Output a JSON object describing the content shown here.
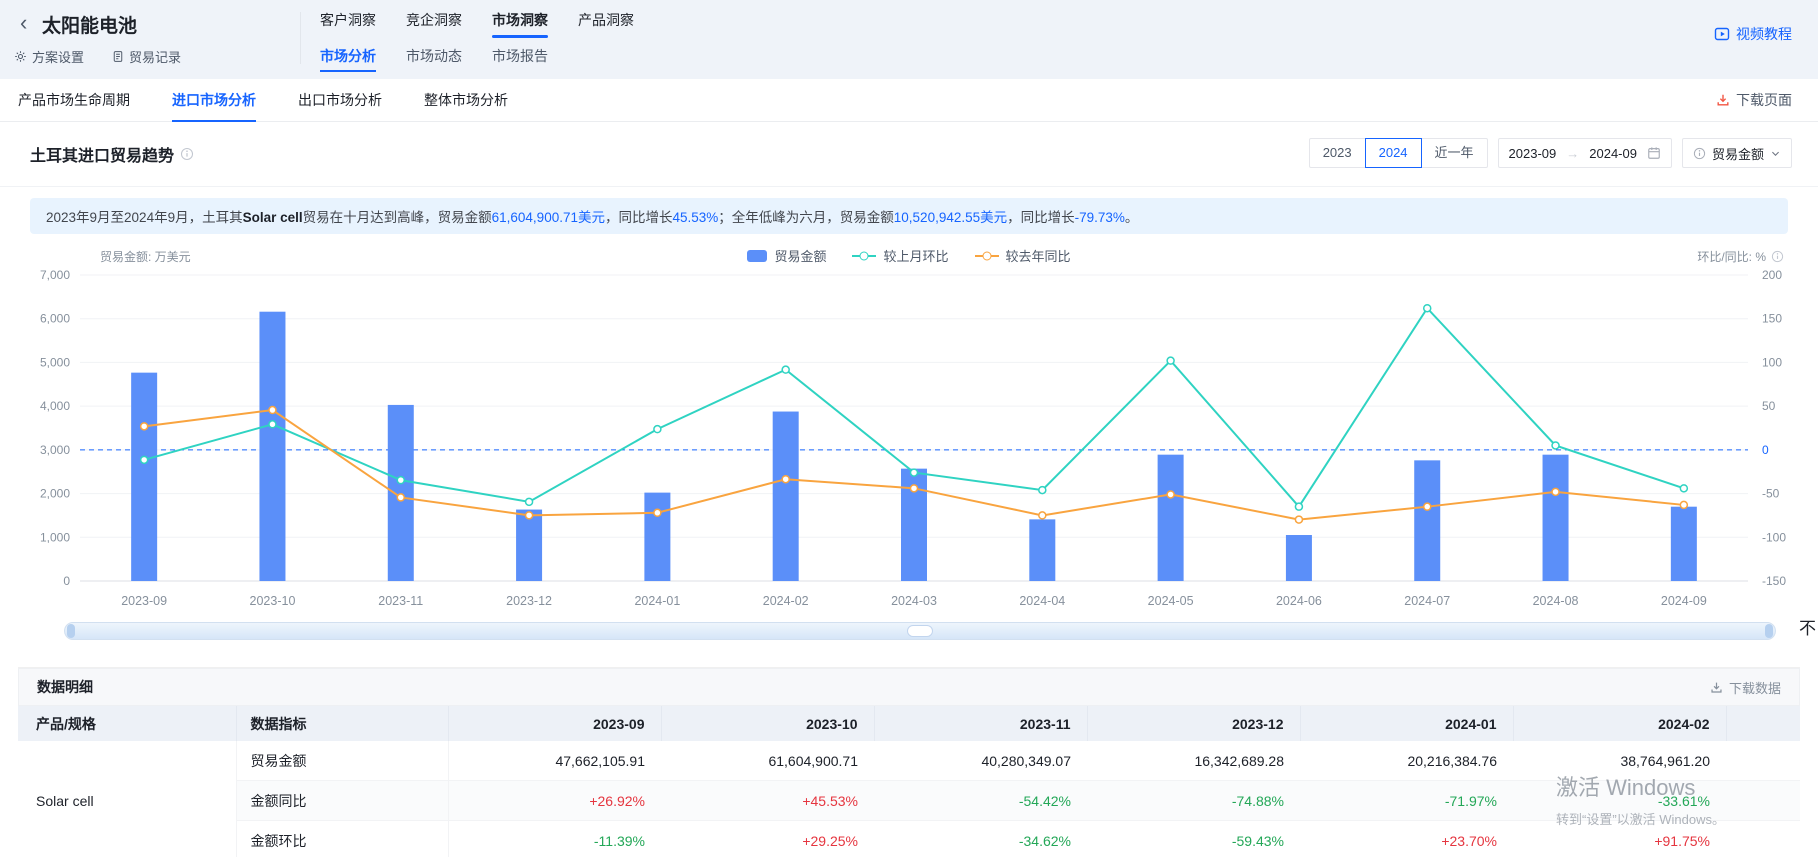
{
  "icons": {
    "back": "‹",
    "arrow_right": "→"
  },
  "colors": {
    "accent": "#1664ff",
    "bar": "#5b8ff9",
    "mom_line": "#2fd3c2",
    "yoy_line": "#f9a43f",
    "positive": "#e5353f",
    "negative": "#23a757",
    "banner_bg": "#e8f3fe"
  },
  "header": {
    "title": "太阳能电池",
    "scheme_settings": "方案设置",
    "trade_records": "贸易记录",
    "top_tabs": [
      "客户洞察",
      "竞企洞察",
      "市场洞察",
      "产品洞察"
    ],
    "active_top_tab": "市场洞察",
    "sub_tabs": [
      "市场分析",
      "市场动态",
      "市场报告"
    ],
    "active_sub_tab": "市场分析",
    "video_tutorial": "视频教程"
  },
  "nav": {
    "items": [
      "产品市场生命周期",
      "进口市场分析",
      "出口市场分析",
      "整体市场分析"
    ],
    "active_item": "进口市场分析",
    "download_page": "下载页面"
  },
  "chart_section": {
    "title": "土耳其进口贸易趋势",
    "year_buttons": [
      "2023",
      "2024",
      "近一年"
    ],
    "active_year": "2024",
    "date_from": "2023-09",
    "date_to": "2024-09",
    "metric_dropdown": "贸易金额",
    "left_axis_unit": "贸易金额: 万美元",
    "right_axis_unit": "环比/同比: %",
    "legend": [
      "贸易金额",
      "较上月环比",
      "较去年同比"
    ],
    "overflow_text": "不",
    "banner_segments": [
      {
        "text": "2023年9月至2024年9月，土耳其",
        "style": "plain"
      },
      {
        "text": "Solar cell",
        "style": "bold"
      },
      {
        "text": "贸易在十月达到高峰，贸易金额",
        "style": "plain"
      },
      {
        "text": "61,604,900.71美元",
        "style": "blue"
      },
      {
        "text": "，同比增长",
        "style": "plain"
      },
      {
        "text": "45.53%",
        "style": "blue"
      },
      {
        "text": "；全年低峰为六月，贸易金额",
        "style": "plain"
      },
      {
        "text": "10,520,942.55美元",
        "style": "blue"
      },
      {
        "text": "，同比增长",
        "style": "plain"
      },
      {
        "text": "-79.73%",
        "style": "blue"
      },
      {
        "text": "。",
        "style": "plain"
      }
    ]
  },
  "chart_data": {
    "type": "bar+line",
    "title": "土耳其进口贸易趋势",
    "categories": [
      "2023-09",
      "2023-10",
      "2023-11",
      "2023-12",
      "2024-01",
      "2024-02",
      "2024-03",
      "2024-04",
      "2024-05",
      "2024-06",
      "2024-07",
      "2024-08",
      "2024-09"
    ],
    "series": [
      {
        "name": "贸易金额",
        "type": "bar",
        "axis": "left",
        "unit": "万美元",
        "color": "#5b8ff9",
        "values": [
          4766.21,
          6160.49,
          4028.03,
          1634.27,
          2021.64,
          3876.5,
          2570,
          1410,
          2890,
          1052.09,
          2760,
          2890,
          1700
        ]
      },
      {
        "name": "较上月环比",
        "type": "line",
        "axis": "right",
        "unit": "%",
        "color": "#2fd3c2",
        "values": [
          -11.39,
          29.25,
          -34.62,
          -59.43,
          23.7,
          91.75,
          -26,
          -46,
          102,
          -65,
          162,
          5,
          -44
        ]
      },
      {
        "name": "较去年同比",
        "type": "line",
        "axis": "right",
        "unit": "%",
        "color": "#f9a43f",
        "values": [
          26.92,
          45.53,
          -54.42,
          -74.88,
          -71.97,
          -33.61,
          -44,
          -75,
          -51,
          -79.73,
          -65,
          -48,
          -63
        ]
      }
    ],
    "left_axis": {
      "min": 0,
      "max": 7000,
      "step": 1000
    },
    "right_axis": {
      "min": -150,
      "max": 200,
      "step": 50
    },
    "zero_reference_line": 0,
    "legend_position": "top-center",
    "grid": true
  },
  "table": {
    "section_title": "数据明细",
    "download_data": "下载数据",
    "col_product": "产品/规格",
    "col_indicator": "数据指标",
    "months": [
      "2023-09",
      "2023-10",
      "2023-11",
      "2023-12",
      "2024-01",
      "2024-02"
    ],
    "product": "Solar cell",
    "rows": [
      {
        "indicator": "贸易金额",
        "values": [
          "47,662,105.91",
          "61,604,900.71",
          "40,280,349.07",
          "16,342,689.28",
          "20,216,384.76",
          "38,764,961.20"
        ]
      },
      {
        "indicator": "金额同比",
        "values": [
          "+26.92%",
          "+45.53%",
          "-54.42%",
          "-74.88%",
          "-71.97%",
          "-33.61%"
        ]
      },
      {
        "indicator": "金额环比",
        "values": [
          "-11.39%",
          "+29.25%",
          "-34.62%",
          "-59.43%",
          "+23.70%",
          "+91.75%"
        ]
      }
    ]
  },
  "watermark": {
    "line1": "激活 Windows",
    "line2": "转到“设置”以激活 Windows。"
  }
}
